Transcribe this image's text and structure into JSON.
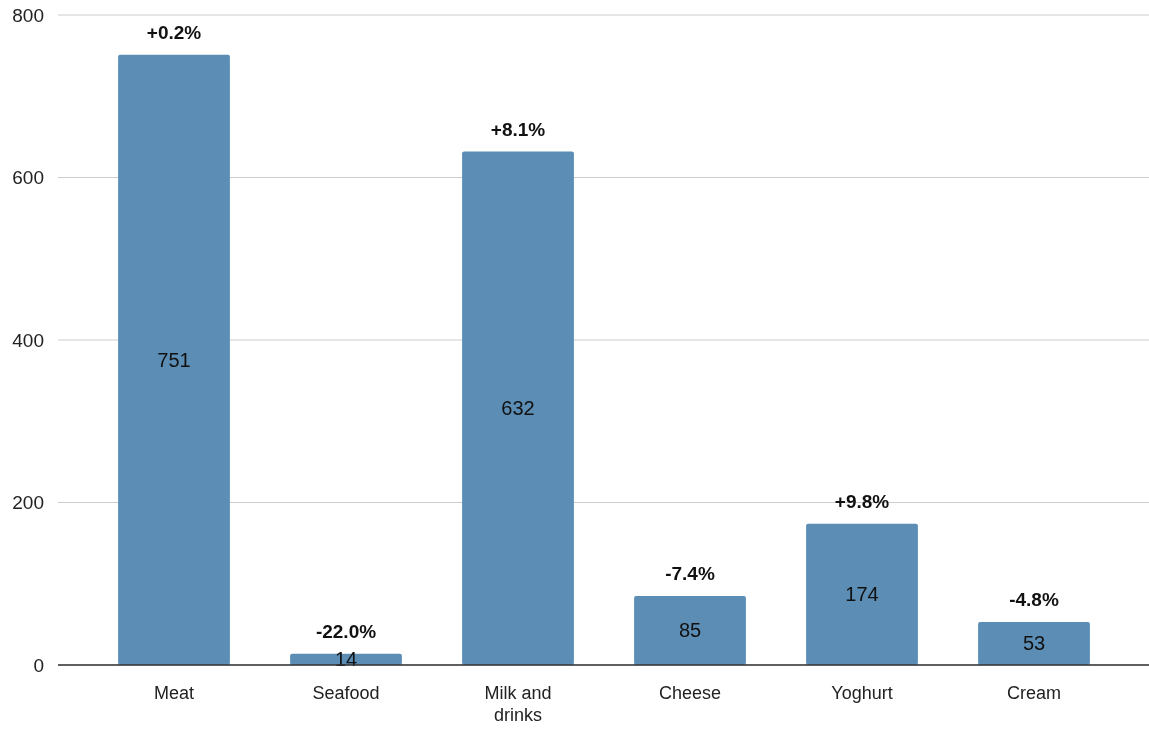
{
  "chart_data": {
    "type": "bar",
    "categories": [
      "Meat",
      "Seafood",
      "Milk and drinks",
      "Cheese",
      "Yoghurt",
      "Cream"
    ],
    "values": [
      751,
      14,
      632,
      85,
      174,
      53
    ],
    "color": "#5b8db5",
    "ylim": [
      0,
      800
    ],
    "yticks": [
      0,
      200,
      400,
      600,
      800
    ],
    "grid": "y",
    "data_labels": true,
    "annotations": [
      {
        "text": "+0.2%",
        "x": "Meat",
        "y": 751
      },
      {
        "text": "-22.0%",
        "x": "Seafood",
        "y": 14
      },
      {
        "text": "+8.1%",
        "x": "Milk and drinks",
        "y": 632
      },
      {
        "text": "-7.4%",
        "x": "Cheese",
        "y": 85
      },
      {
        "text": "+9.8%",
        "x": "Yoghurt",
        "y": 174
      },
      {
        "text": "-4.8%",
        "x": "Cream",
        "y": 53
      }
    ]
  }
}
